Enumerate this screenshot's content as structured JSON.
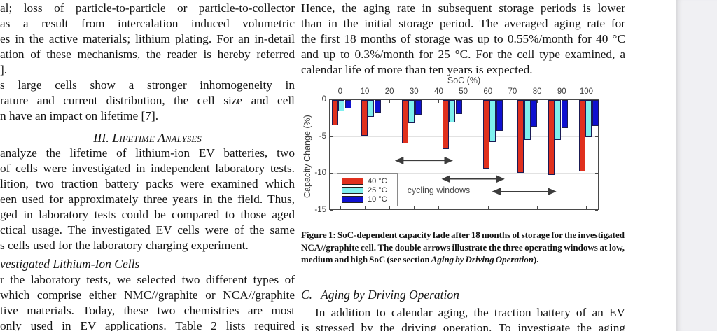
{
  "page": {
    "background": "#ffffff",
    "edge_background": "#f0f0f3"
  },
  "left_column": {
    "para1": [
      {
        "t": "al; loss of particle-to-particle or particle-to-collector",
        "j": true
      },
      {
        "t": "as a result from intercalation induced volumetric",
        "j": true
      },
      {
        "t": "es in the active materials; lithium plating. For an in-detail",
        "j": true
      },
      {
        "t": "ation of these mechanisms, the reader is hereby referred",
        "j": true
      },
      {
        "t": "].",
        "j": false
      }
    ],
    "para2": [
      {
        "t": "s large cells show a stronger inhomogeneity in",
        "j": true
      },
      {
        "t": "rature and current distribution, the cell size and cell",
        "j": true
      },
      {
        "t": "n have an impact on lifetime [7].",
        "j": false
      }
    ],
    "section_heading": "III. Lifetime Analyses",
    "para3": [
      {
        "t": "analyze the lifetime of lithium-ion EV batteries, two",
        "j": true
      },
      {
        "t": "of cells were investigated in independent laboratory tests.",
        "j": true
      },
      {
        "t": "lition, two traction battery packs were examined which",
        "j": true
      },
      {
        "t": "een used for approximately three years in the field. Thus,",
        "j": true
      },
      {
        "t": "ged in laboratory tests could be compared to those aged",
        "j": true
      },
      {
        "t": "ctical usage. The investigated EV cells were of the same",
        "j": true
      },
      {
        "t": "s cells used for the laboratory charging experiment.",
        "j": false
      }
    ],
    "subsection_heading": "vestigated Lithium-Ion Cells",
    "para4": [
      {
        "t": "r the laboratory tests, we selected two different types of",
        "j": true
      },
      {
        "t": "which comprise either NMC//graphite or NCA//graphite",
        "j": true
      },
      {
        "t": "tive materials. Today, these two chemistries are most",
        "j": true
      },
      {
        "t": "only used in EV applications. Table 2 lists required",
        "j": true
      }
    ]
  },
  "right_column": {
    "para1": [
      {
        "t": "Hence, the aging rate in subsequent storage periods is lower",
        "j": true
      },
      {
        "t": "than in the initial storage period. The averaged aging rate for",
        "j": true
      },
      {
        "t": "the first 18 months of storage was up to 0.55%/month for 40 °C",
        "j": true
      },
      {
        "t": "and up to 0.3%/month for 25 °C. For the cell type examined, a",
        "j": true
      },
      {
        "t": "calendar life of more than ten years is expected.",
        "j": false
      }
    ],
    "caption": {
      "seg1": "Figure 1: SoC-dependent capacity fade after 18 months of storage for the investigated NCA//graphite cell. The double arrows illustrate the three operating windows at low, medium and high SoC (see section ",
      "seg2_italic": "Aging by Driving Operation",
      "seg3": ")."
    },
    "section_c": {
      "label": "C.",
      "title": "Aging by Driving Operation"
    },
    "para2": [
      {
        "t": "In addition to calendar aging, the traction battery of an EV",
        "j": true,
        "indent": true
      },
      {
        "t": "is stressed by the driving operation. To investigate the aging",
        "j": true
      }
    ]
  },
  "chart_data": {
    "type": "bar",
    "xlabel": "SoC (%)",
    "ylabel": "Capacity Change (%)",
    "xlim": [
      -4.5,
      105
    ],
    "ylim": [
      -15,
      0
    ],
    "x_ticks": [
      0,
      10,
      20,
      30,
      40,
      50,
      60,
      70,
      80,
      90,
      100
    ],
    "y_ticks": [
      0,
      -5,
      -10,
      -15
    ],
    "gridlines_y": [
      -5,
      -10
    ],
    "group_centers_soc": [
      0.5,
      12.5,
      29,
      45.5,
      62,
      76,
      88.5,
      101
    ],
    "series": [
      {
        "name": "40 °C",
        "color": "#e0301e",
        "values": [
          -3.5,
          -4.9,
          -6.0,
          -6.7,
          -9.4,
          -10.0,
          -10.3,
          -9.8
        ]
      },
      {
        "name": "25 °C",
        "color": "#7ff0ee",
        "values": [
          -1.6,
          -2.4,
          -3.2,
          -3.1,
          -5.8,
          -5.5,
          -5.5,
          -5.1
        ]
      },
      {
        "name": "10 °C",
        "color": "#0f11d0",
        "values": [
          -1.2,
          -1.8,
          -2.1,
          -2.0,
          -4.3,
          -3.7,
          -3.9,
          -3.6
        ]
      }
    ],
    "legend": {
      "position": "lower-left",
      "entries": [
        "40 °C",
        "25 °C",
        "10 °C"
      ]
    },
    "annotations": {
      "double_arrows": [
        {
          "soc_from": 22,
          "soc_to": 46,
          "y": -8.3
        },
        {
          "soc_from": 41,
          "soc_to": 67,
          "y": -10.8
        },
        {
          "soc_from": 61.5,
          "soc_to": 88,
          "y": -12.5
        }
      ],
      "label": {
        "text": "cycling windows",
        "soc_x": 40,
        "y": -12.3
      }
    },
    "arrow_color": "#3c3c3c"
  }
}
